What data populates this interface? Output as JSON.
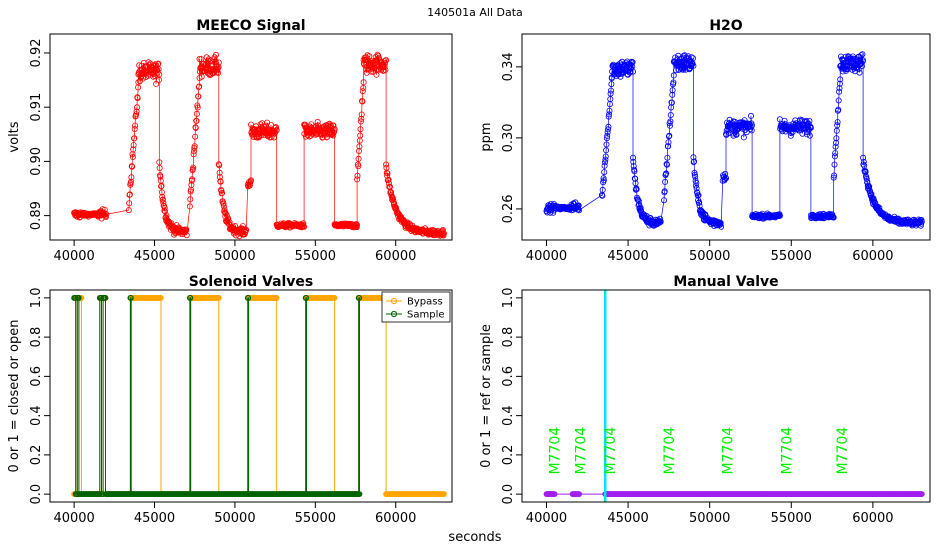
{
  "figure": {
    "super_title": "140501a   All Data",
    "shared_xlabel": "seconds"
  },
  "chart_data": [
    {
      "id": "meeco",
      "type": "scatter",
      "title": "MEECO Signal",
      "xlabel": "",
      "ylabel": "volts",
      "color": "#ff0000",
      "xlim": [
        38500,
        63500
      ],
      "ylim": [
        0.8855,
        0.9235
      ],
      "x_ticks": [
        40000,
        45000,
        50000,
        55000,
        60000
      ],
      "x_tick_labels": [
        "40000",
        "45000",
        "50000",
        "55000",
        "60000"
      ],
      "y_ticks": [
        0.89,
        0.9,
        0.91,
        0.92
      ],
      "y_tick_labels": [
        "0.89",
        "0.90",
        "0.91",
        "0.92"
      ],
      "segments": [
        {
          "x0": 40000,
          "x1": 40500,
          "base": 0.8902,
          "spread": 0.0007
        },
        {
          "x0": 40500,
          "x1": 41500,
          "base": 0.8902,
          "spread": 0.0003
        },
        {
          "x0": 41500,
          "x1": 42000,
          "base": 0.8903,
          "spread": 0.0008
        },
        {
          "x0": 43400,
          "x1": 44000,
          "base": 0.892,
          "rise_to": 0.914,
          "spread": 0.001
        },
        {
          "x0": 44000,
          "x1": 45300,
          "base": 0.9165,
          "spread": 0.0018
        },
        {
          "x0": 45300,
          "x1": 47000,
          "base": 0.887,
          "decay_from": 0.9,
          "spread": 0.0008
        },
        {
          "x0": 47200,
          "x1": 47800,
          "base": 0.892,
          "rise_to": 0.915,
          "spread": 0.001
        },
        {
          "x0": 47800,
          "x1": 49000,
          "base": 0.9175,
          "spread": 0.0018
        },
        {
          "x0": 49000,
          "x1": 50700,
          "base": 0.887,
          "decay_from": 0.9,
          "spread": 0.0008
        },
        {
          "x0": 50800,
          "x1": 51000,
          "base": 0.896,
          "spread": 0.0008
        },
        {
          "x0": 51000,
          "x1": 52600,
          "base": 0.9055,
          "spread": 0.0015
        },
        {
          "x0": 52600,
          "x1": 54300,
          "base": 0.8882,
          "spread": 0.0004
        },
        {
          "x0": 54300,
          "x1": 56200,
          "base": 0.9055,
          "spread": 0.0015
        },
        {
          "x0": 56200,
          "x1": 57600,
          "base": 0.8882,
          "spread": 0.0004
        },
        {
          "x0": 57600,
          "x1": 58000,
          "base": 0.896,
          "rise_to": 0.915,
          "spread": 0.001
        },
        {
          "x0": 58000,
          "x1": 59400,
          "base": 0.918,
          "spread": 0.0018
        },
        {
          "x0": 59400,
          "x1": 63000,
          "base": 0.8868,
          "decay_from": 0.899,
          "spread": 0.0006
        }
      ]
    },
    {
      "id": "h2o",
      "type": "scatter",
      "title": "H2O",
      "xlabel": "",
      "ylabel": "ppm",
      "color": "#0000ff",
      "xlim": [
        38500,
        63500
      ],
      "ylim": [
        0.2425,
        0.3585
      ],
      "x_ticks": [
        40000,
        45000,
        50000,
        55000,
        60000
      ],
      "x_tick_labels": [
        "40000",
        "45000",
        "50000",
        "55000",
        "60000"
      ],
      "y_ticks": [
        0.26,
        0.3,
        0.34
      ],
      "y_tick_labels": [
        "0.26",
        "0.30",
        "0.34"
      ],
      "segments": [
        {
          "x0": 40000,
          "x1": 40500,
          "base": 0.2605,
          "spread": 0.0022
        },
        {
          "x0": 40500,
          "x1": 41500,
          "base": 0.2605,
          "spread": 0.001
        },
        {
          "x0": 41500,
          "x1": 42000,
          "base": 0.261,
          "spread": 0.0025
        },
        {
          "x0": 43400,
          "x1": 44000,
          "base": 0.266,
          "rise_to": 0.332,
          "spread": 0.003
        },
        {
          "x0": 44000,
          "x1": 45300,
          "base": 0.339,
          "spread": 0.0055
        },
        {
          "x0": 45300,
          "x1": 47000,
          "base": 0.252,
          "decay_from": 0.29,
          "spread": 0.0025
        },
        {
          "x0": 47200,
          "x1": 47800,
          "base": 0.266,
          "rise_to": 0.335,
          "spread": 0.003
        },
        {
          "x0": 47800,
          "x1": 49000,
          "base": 0.342,
          "spread": 0.0055
        },
        {
          "x0": 49000,
          "x1": 50700,
          "base": 0.252,
          "decay_from": 0.29,
          "spread": 0.0025
        },
        {
          "x0": 50800,
          "x1": 51000,
          "base": 0.278,
          "spread": 0.0025
        },
        {
          "x0": 51000,
          "x1": 52600,
          "base": 0.306,
          "spread": 0.0045
        },
        {
          "x0": 52600,
          "x1": 54300,
          "base": 0.256,
          "spread": 0.0012
        },
        {
          "x0": 54300,
          "x1": 56200,
          "base": 0.306,
          "spread": 0.0045
        },
        {
          "x0": 56200,
          "x1": 57600,
          "base": 0.256,
          "spread": 0.0012
        },
        {
          "x0": 57600,
          "x1": 58000,
          "base": 0.278,
          "rise_to": 0.335,
          "spread": 0.003
        },
        {
          "x0": 58000,
          "x1": 59400,
          "base": 0.342,
          "spread": 0.0055
        },
        {
          "x0": 59400,
          "x1": 63000,
          "base": 0.252,
          "decay_from": 0.288,
          "spread": 0.0018
        }
      ]
    },
    {
      "id": "solenoid",
      "type": "line",
      "title": "Solenoid Valves",
      "xlabel": "",
      "ylabel": "0 or 1 = closed or open",
      "xlim": [
        38500,
        63500
      ],
      "ylim": [
        -0.04,
        1.04
      ],
      "x_ticks": [
        40000,
        45000,
        50000,
        55000,
        60000
      ],
      "x_tick_labels": [
        "40000",
        "45000",
        "50000",
        "55000",
        "60000"
      ],
      "y_ticks": [
        0.0,
        0.2,
        0.4,
        0.6,
        0.8,
        1.0
      ],
      "y_tick_labels": [
        "0.0",
        "0.2",
        "0.4",
        "0.6",
        "0.8",
        "1.0"
      ],
      "legend": {
        "position": "top-right",
        "entries": [
          "Bypass",
          "Sample"
        ]
      },
      "series": [
        {
          "name": "Bypass",
          "color": "#ffa500",
          "transitions": [
            [
              40000,
              0
            ],
            [
              40100,
              1
            ],
            [
              40200,
              0
            ],
            [
              40300,
              1
            ],
            [
              40450,
              0
            ],
            [
              41600,
              1
            ],
            [
              41700,
              0
            ],
            [
              41800,
              1
            ],
            [
              41950,
              0
            ],
            [
              43500,
              1
            ],
            [
              45400,
              0
            ],
            [
              47200,
              1
            ],
            [
              49000,
              0
            ],
            [
              50800,
              1
            ],
            [
              52600,
              0
            ],
            [
              54400,
              1
            ],
            [
              56200,
              0
            ],
            [
              57700,
              1
            ],
            [
              59400,
              0
            ]
          ],
          "end_x": 63000
        },
        {
          "name": "Sample",
          "color": "#006400",
          "transitions": [
            [
              40000,
              1
            ],
            [
              40100,
              0
            ],
            [
              40200,
              1
            ],
            [
              40300,
              0
            ],
            [
              41600,
              1
            ],
            [
              41700,
              0
            ],
            [
              41800,
              1
            ],
            [
              41950,
              0
            ],
            [
              43500,
              1
            ],
            [
              43550,
              0
            ],
            [
              47200,
              1
            ],
            [
              47250,
              0
            ],
            [
              50800,
              1
            ],
            [
              50850,
              0
            ],
            [
              54400,
              1
            ],
            [
              54450,
              0
            ],
            [
              57700,
              1
            ],
            [
              57750,
              0
            ]
          ],
          "end_x": 57750
        }
      ]
    },
    {
      "id": "manual",
      "type": "scatter",
      "title": "Manual Valve",
      "xlabel": "",
      "ylabel": "0 or 1 = ref or sample",
      "color": "#a020f0",
      "xlim": [
        38500,
        63500
      ],
      "ylim": [
        -0.04,
        1.04
      ],
      "x_ticks": [
        40000,
        45000,
        50000,
        55000,
        60000
      ],
      "x_tick_labels": [
        "40000",
        "45000",
        "50000",
        "55000",
        "60000"
      ],
      "y_ticks": [
        0.0,
        0.2,
        0.4,
        0.6,
        0.8,
        1.0
      ],
      "y_tick_labels": [
        "0.0",
        "0.2",
        "0.4",
        "0.6",
        "0.8",
        "1.0"
      ],
      "points_ranges": [
        [
          40000,
          40500
        ],
        [
          41600,
          42000
        ],
        [
          43600,
          63000
        ]
      ],
      "value": 0,
      "vline": {
        "x": 43600,
        "color": "#00e5ee"
      },
      "annotations": {
        "color": "#00ee00",
        "y": 0.1,
        "items": [
          {
            "x": 40800,
            "label": "M7704"
          },
          {
            "x": 42400,
            "label": "M7704"
          },
          {
            "x": 44200,
            "label": "M7704"
          },
          {
            "x": 47800,
            "label": "M7704"
          },
          {
            "x": 51400,
            "label": "M7704"
          },
          {
            "x": 55000,
            "label": "M7704"
          },
          {
            "x": 58400,
            "label": "M7704"
          }
        ]
      }
    }
  ]
}
